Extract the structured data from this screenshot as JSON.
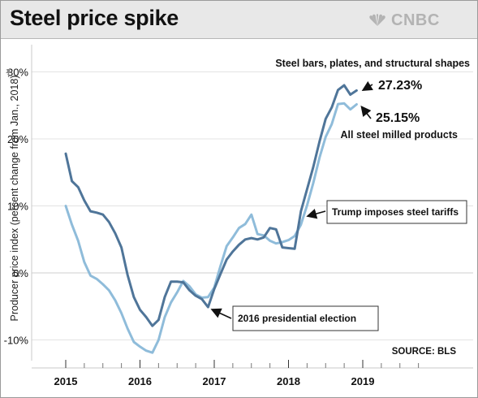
{
  "header": {
    "title": "Steel price spike",
    "brand": "CNBC",
    "brand_icon": "peacock-icon"
  },
  "colors": {
    "bars_series": "#4f7599",
    "all_steel_series": "#8fbcda",
    "background": "#ffffff",
    "header_bg": "#e8e8e8",
    "grid": "#d9d9d9"
  },
  "chart_data": {
    "type": "line",
    "title": "Steel price spike",
    "ylabel": "Producer price index (percent change from Jan., 2018)",
    "xlabel": "",
    "xlim": [
      2015.0,
      2019.5
    ],
    "ylim": [
      -13,
      31
    ],
    "grid": "horizontal",
    "xticks": [
      2015,
      2016,
      2017,
      2018,
      2019
    ],
    "xtick_labels": [
      "2015",
      "2016",
      "2017",
      "2018",
      "2019"
    ],
    "yticks": [
      30,
      20,
      10,
      0,
      -10
    ],
    "ytick_labels": [
      "30%",
      "20%",
      "10%",
      "0%",
      "-10%"
    ],
    "series": [
      {
        "name": "Steel bars, plates, and structural shapes",
        "end_label": "27.23%",
        "color": "#4f7599",
        "points": [
          [
            2015.0,
            17.8
          ],
          [
            2015.083,
            13.7
          ],
          [
            2015.167,
            12.8
          ],
          [
            2015.25,
            10.8
          ],
          [
            2015.333,
            9.2
          ],
          [
            2015.417,
            9.0
          ],
          [
            2015.5,
            8.7
          ],
          [
            2015.583,
            7.6
          ],
          [
            2015.667,
            5.9
          ],
          [
            2015.75,
            3.8
          ],
          [
            2015.833,
            -0.3
          ],
          [
            2015.917,
            -3.6
          ],
          [
            2016.0,
            -5.5
          ],
          [
            2016.083,
            -6.6
          ],
          [
            2016.167,
            -7.9
          ],
          [
            2016.25,
            -7.0
          ],
          [
            2016.333,
            -3.6
          ],
          [
            2016.417,
            -1.3
          ],
          [
            2016.5,
            -1.3
          ],
          [
            2016.583,
            -1.4
          ],
          [
            2016.667,
            -2.6
          ],
          [
            2016.75,
            -3.4
          ],
          [
            2016.833,
            -3.9
          ],
          [
            2016.917,
            -5.1
          ],
          [
            2017.0,
            -2.4
          ],
          [
            2017.083,
            -0.2
          ],
          [
            2017.167,
            2.0
          ],
          [
            2017.25,
            3.2
          ],
          [
            2017.333,
            4.2
          ],
          [
            2017.417,
            5.0
          ],
          [
            2017.5,
            5.2
          ],
          [
            2017.583,
            5.0
          ],
          [
            2017.667,
            5.3
          ],
          [
            2017.75,
            6.7
          ],
          [
            2017.833,
            6.5
          ],
          [
            2017.917,
            3.8
          ],
          [
            2018.0,
            3.7
          ],
          [
            2018.083,
            3.6
          ],
          [
            2018.167,
            9.2
          ],
          [
            2018.25,
            12.5
          ],
          [
            2018.333,
            15.8
          ],
          [
            2018.417,
            19.6
          ],
          [
            2018.5,
            23.0
          ],
          [
            2018.583,
            24.7
          ],
          [
            2018.667,
            27.3
          ],
          [
            2018.75,
            28.0
          ],
          [
            2018.833,
            26.6
          ],
          [
            2018.917,
            27.23
          ]
        ]
      },
      {
        "name": "All steel milled products",
        "end_label": "25.15%",
        "color": "#8fbcda",
        "points": [
          [
            2015.0,
            10.0
          ],
          [
            2015.083,
            7.2
          ],
          [
            2015.167,
            4.8
          ],
          [
            2015.25,
            1.6
          ],
          [
            2015.333,
            -0.4
          ],
          [
            2015.417,
            -0.9
          ],
          [
            2015.5,
            -1.7
          ],
          [
            2015.583,
            -2.6
          ],
          [
            2015.667,
            -4.1
          ],
          [
            2015.75,
            -6.0
          ],
          [
            2015.833,
            -8.3
          ],
          [
            2015.917,
            -10.3
          ],
          [
            2016.0,
            -11.0
          ],
          [
            2016.083,
            -11.6
          ],
          [
            2016.167,
            -11.9
          ],
          [
            2016.25,
            -10.0
          ],
          [
            2016.333,
            -6.6
          ],
          [
            2016.417,
            -4.4
          ],
          [
            2016.5,
            -2.9
          ],
          [
            2016.583,
            -1.2
          ],
          [
            2016.667,
            -2.0
          ],
          [
            2016.75,
            -3.2
          ],
          [
            2016.833,
            -3.7
          ],
          [
            2016.917,
            -3.6
          ],
          [
            2017.0,
            -2.2
          ],
          [
            2017.083,
            1.0
          ],
          [
            2017.167,
            4.0
          ],
          [
            2017.25,
            5.3
          ],
          [
            2017.333,
            6.7
          ],
          [
            2017.417,
            7.3
          ],
          [
            2017.5,
            8.7
          ],
          [
            2017.583,
            5.8
          ],
          [
            2017.667,
            5.6
          ],
          [
            2017.75,
            4.8
          ],
          [
            2017.833,
            4.4
          ],
          [
            2017.917,
            4.6
          ],
          [
            2018.0,
            4.9
          ],
          [
            2018.083,
            5.5
          ],
          [
            2018.167,
            7.2
          ],
          [
            2018.25,
            10.1
          ],
          [
            2018.333,
            13.4
          ],
          [
            2018.417,
            17.2
          ],
          [
            2018.5,
            20.3
          ],
          [
            2018.583,
            22.2
          ],
          [
            2018.667,
            25.2
          ],
          [
            2018.75,
            25.3
          ],
          [
            2018.833,
            24.4
          ],
          [
            2018.917,
            25.15
          ]
        ]
      }
    ],
    "annotations": [
      {
        "text": "Trump imposes steel tariffs",
        "at": [
          2018.25,
          9.0
        ]
      },
      {
        "text": "2016 presidential election",
        "at": [
          2016.917,
          -4.8
        ]
      }
    ],
    "source": "SOURCE: BLS"
  }
}
